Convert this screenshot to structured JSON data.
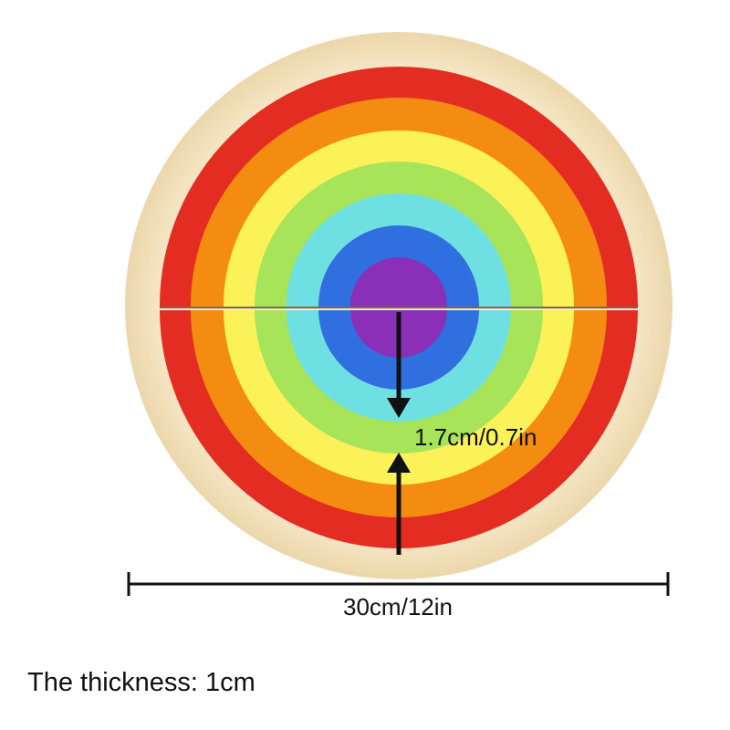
{
  "annotations": {
    "gap_label": "1.7cm/0.7in",
    "diameter_label": "30cm/12in",
    "thickness_note": "The thickness: 1cm"
  }
}
